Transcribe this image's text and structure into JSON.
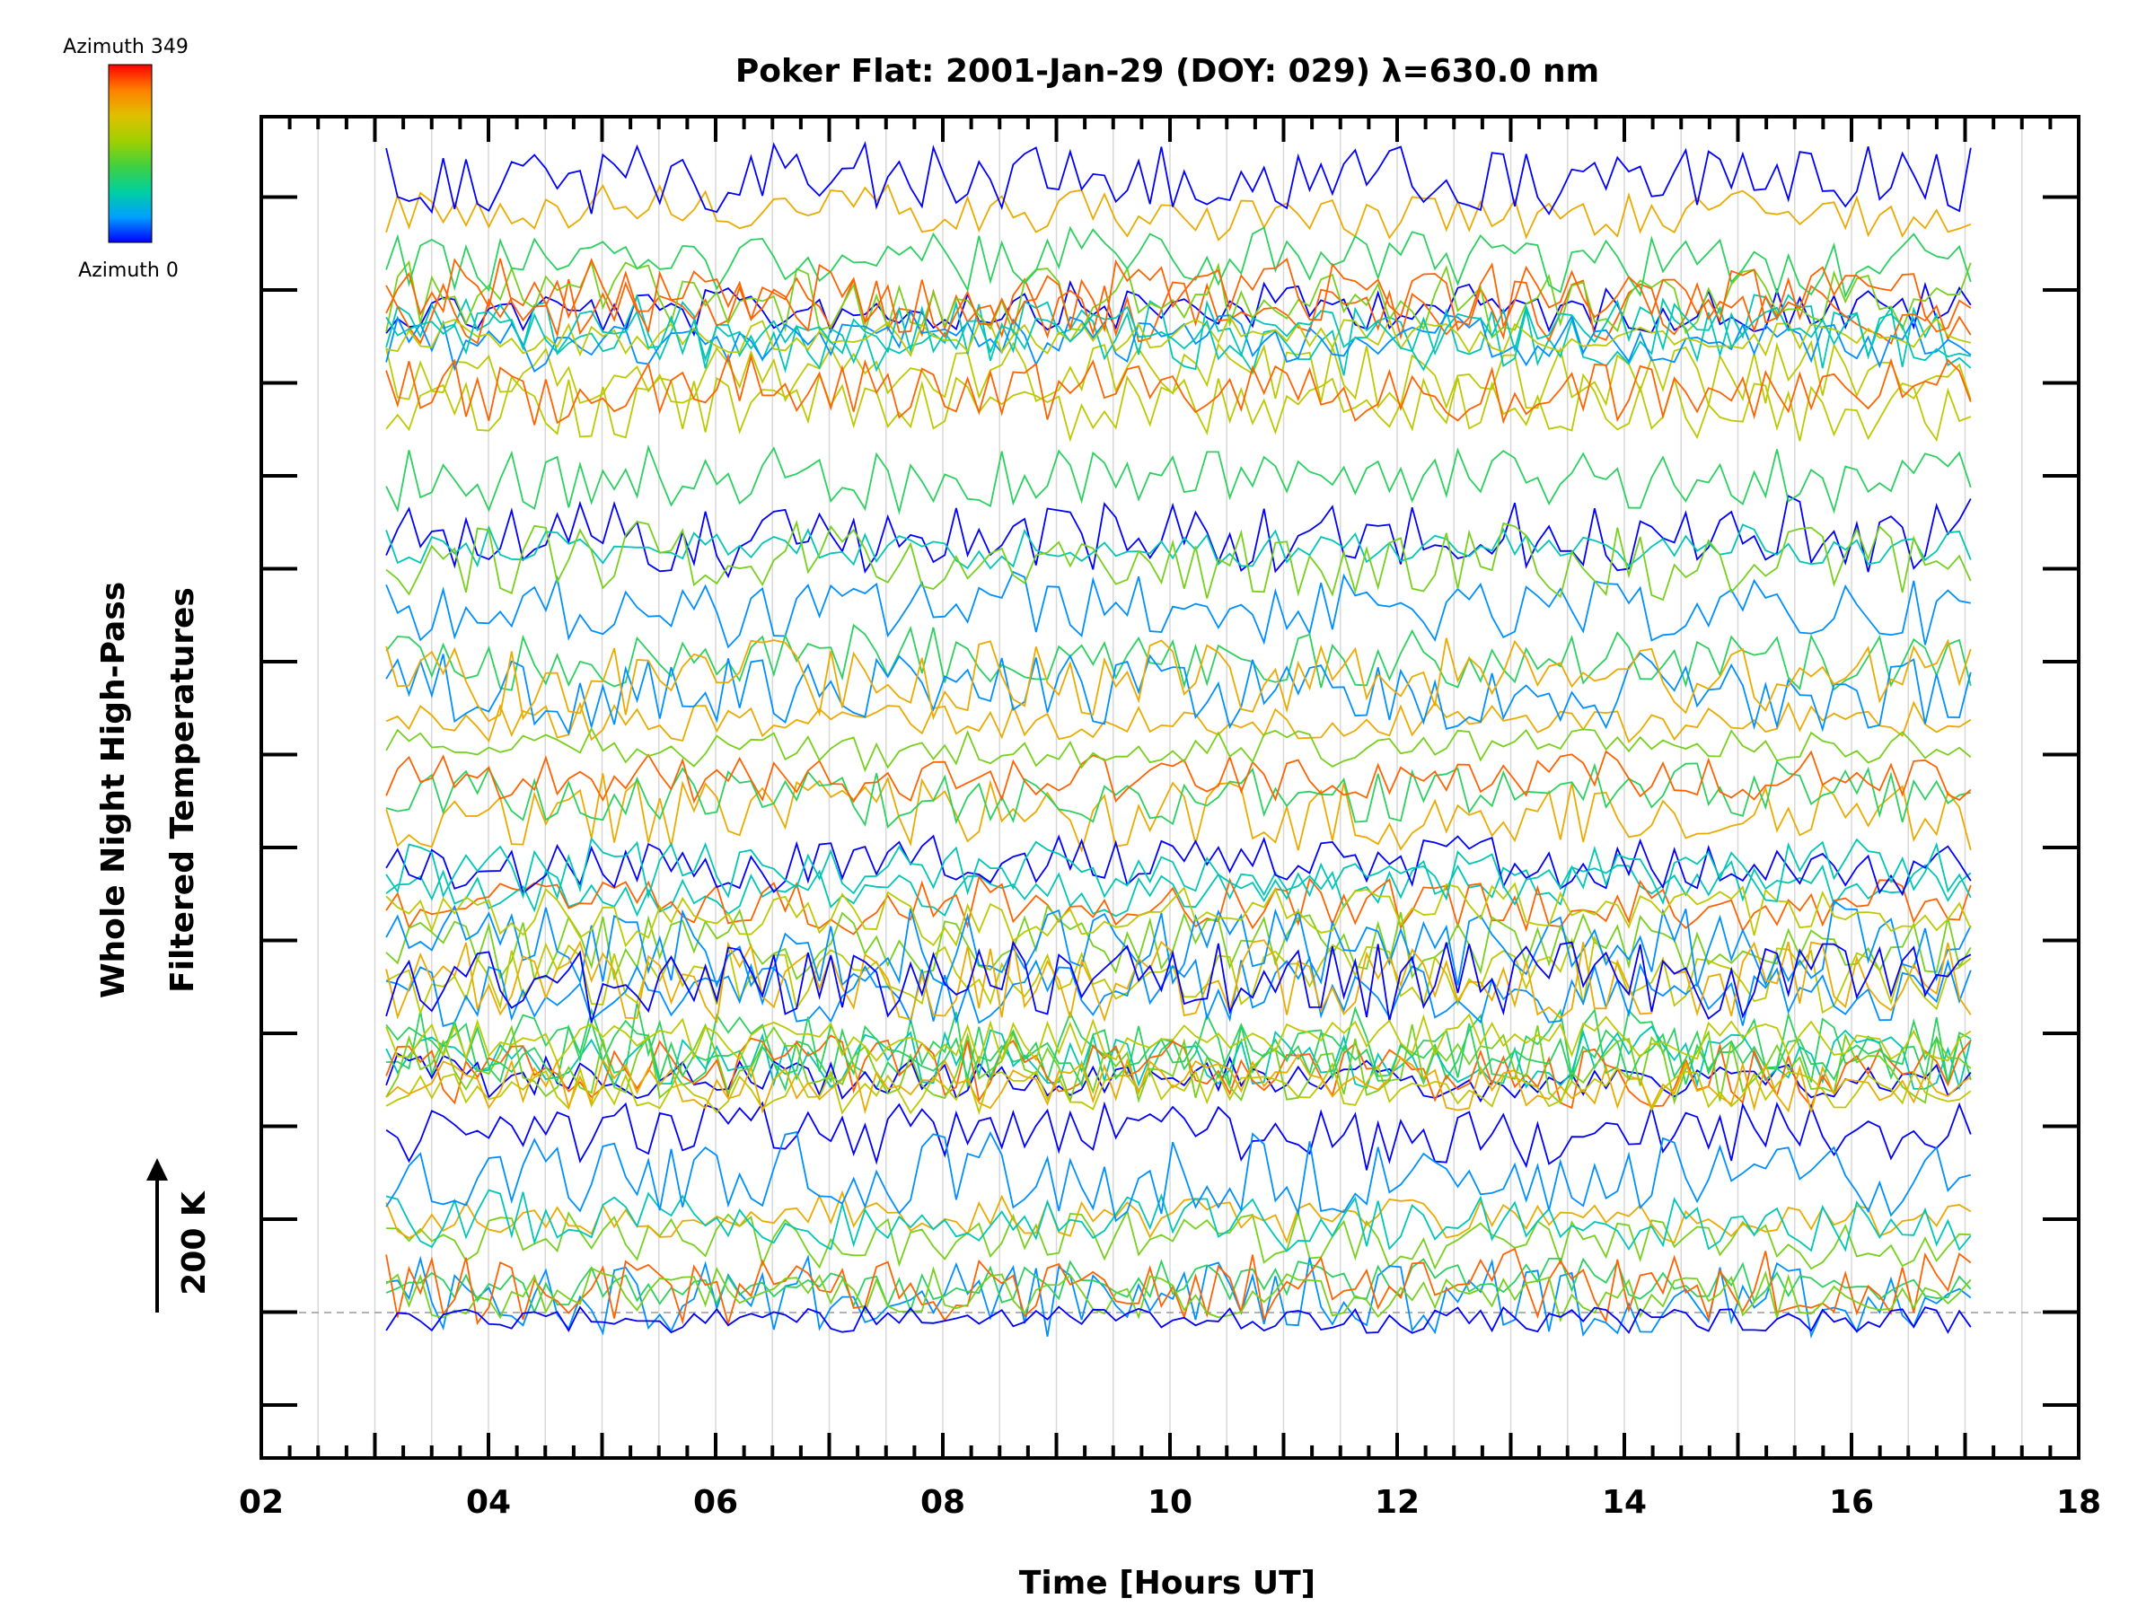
{
  "chart_data": {
    "type": "line",
    "title": "Poker Flat: 2001-Jan-29 (DOY: 029) λ=630.0 nm",
    "xlabel": "Time [Hours UT]",
    "ylabel_line1": "Whole Night High-Pass",
    "ylabel_line2": "Filtered Temperatures",
    "scale_label": "200 K",
    "xlim": [
      2,
      18
    ],
    "x_tick_labels": [
      "02",
      "04",
      "06",
      "08",
      "10",
      "12",
      "14",
      "16",
      "18"
    ],
    "data_time_range": [
      3.1,
      17.05
    ],
    "vertical_grid": true,
    "colorbar": {
      "label_top": "Azimuth 349",
      "label_bottom": "Azimuth 0",
      "colors": [
        "#0000ff",
        "#00a0ff",
        "#00d0a0",
        "#40d040",
        "#a0d000",
        "#e0c000",
        "#ff8000",
        "#ff0000"
      ]
    },
    "series_summary": "Many stacked high-pass filtered temperature traces, one per azimuth direction, each offset vertically and colored by azimuth (blue = 0, red = 349)."
  }
}
